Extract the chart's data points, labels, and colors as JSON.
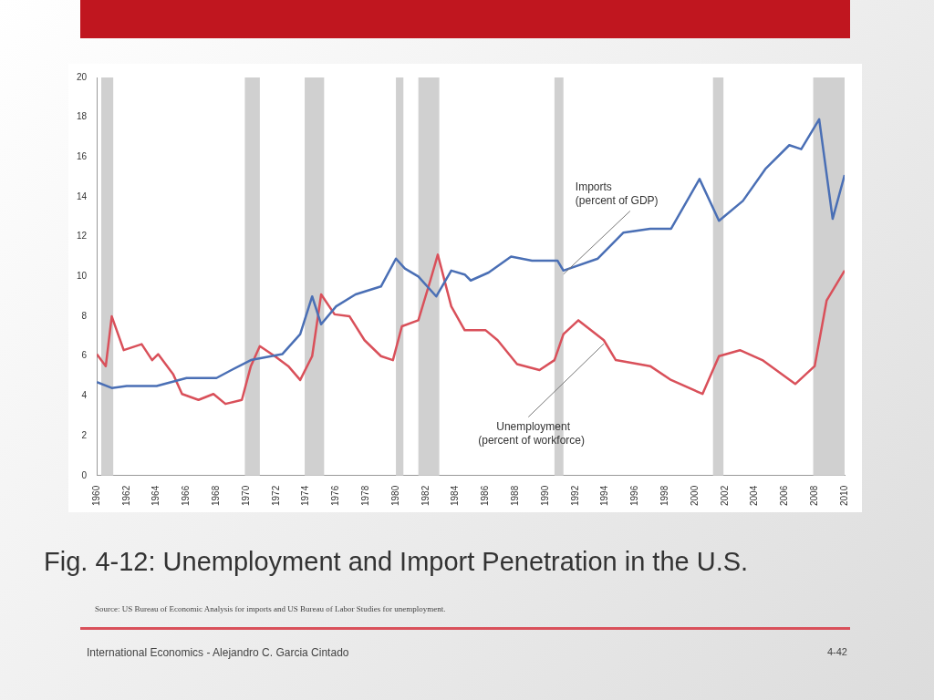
{
  "chart_data": {
    "type": "line",
    "title": "Fig. 4-12: Unemployment and Import Penetration in the U.S.",
    "annotations": [
      "Source: US Bureau of Economic Analysis for imports and US Bureau of Labor Studies for unemployment.",
      "International Economics - Alejandro C. Garcia Cintado",
      "4-42"
    ],
    "xlim": [
      1960,
      2010
    ],
    "xticks": [
      1960,
      1962,
      1964,
      1966,
      1968,
      1970,
      1972,
      1974,
      1976,
      1978,
      1980,
      1982,
      1984,
      1986,
      1988,
      1990,
      1992,
      1994,
      1996,
      1998,
      2000,
      2002,
      2004,
      2006,
      2008,
      2010
    ],
    "ylim": [
      0,
      20
    ],
    "yticks": [
      0,
      2,
      4,
      6,
      8,
      10,
      12,
      14,
      16,
      18,
      20
    ],
    "grid": false,
    "legend": false,
    "marker": "none",
    "line_style": "solid",
    "bands": [
      {
        "axis": "x",
        "from": 1960.3,
        "to": 1961.1,
        "color": "#d0d0d0"
      },
      {
        "axis": "x",
        "from": 1969.9,
        "to": 1970.9,
        "color": "#d0d0d0"
      },
      {
        "axis": "x",
        "from": 1973.9,
        "to": 1975.2,
        "color": "#d0d0d0"
      },
      {
        "axis": "x",
        "from": 1980.0,
        "to": 1980.5,
        "color": "#d0d0d0"
      },
      {
        "axis": "x",
        "from": 1981.5,
        "to": 1982.9,
        "color": "#d0d0d0"
      },
      {
        "axis": "x",
        "from": 1990.6,
        "to": 1991.2,
        "color": "#d0d0d0"
      },
      {
        "axis": "x",
        "from": 2001.2,
        "to": 2001.9,
        "color": "#d0d0d0"
      },
      {
        "axis": "x",
        "from": 2007.9,
        "to": 2010,
        "color": "#d0d0d0"
      }
    ],
    "series": [
      {
        "name": "Imports\n(percent of GDP)",
        "color": "#4a6fb5",
        "x": [
          1960,
          1961,
          1962,
          1964,
          1966,
          1968,
          1969,
          1970.3,
          1972.4,
          1973.6,
          1974.4,
          1975,
          1976,
          1977.3,
          1979,
          1980,
          1980.6,
          1981.5,
          1982.7,
          1983.7,
          1984.6,
          1985,
          1986.2,
          1987.7,
          1989.1,
          1990.8,
          1991.2,
          1993.5,
          1995.2,
          1997,
          1998.4,
          2000.3,
          2001.6,
          2003.2,
          2004.7,
          2006.3,
          2007.1,
          2008.3,
          2009.2,
          2010
        ],
        "values": [
          4.7,
          4.4,
          4.5,
          4.5,
          4.9,
          4.9,
          5.3,
          5.8,
          6.1,
          7.1,
          9.0,
          7.6,
          8.5,
          9.1,
          9.5,
          10.9,
          10.4,
          10.0,
          9.0,
          10.3,
          10.1,
          9.8,
          10.2,
          11.0,
          10.8,
          10.8,
          10.3,
          10.9,
          12.2,
          12.4,
          12.4,
          14.9,
          12.8,
          13.8,
          15.4,
          16.6,
          16.4,
          17.9,
          12.9,
          15.1
        ]
      },
      {
        "name": "Unemployment\n(percent of workforce)",
        "color": "#d9505a",
        "x": [
          1960,
          1960.6,
          1961,
          1961.8,
          1963,
          1963.7,
          1964.1,
          1965.1,
          1965.7,
          1966.8,
          1967.8,
          1968.6,
          1969.7,
          1970.3,
          1970.9,
          1971.9,
          1972.8,
          1973.6,
          1974.4,
          1975,
          1975.9,
          1976.9,
          1977.9,
          1979,
          1979.8,
          1980.4,
          1981.5,
          1982.3,
          1982.8,
          1983.7,
          1984.6,
          1986,
          1986.8,
          1988.1,
          1989.6,
          1990.6,
          1991.2,
          1992.2,
          1993.9,
          1994.7,
          1997,
          1998.4,
          2000.5,
          2001.6,
          2003,
          2004.5,
          2006.7,
          2008,
          2008.8,
          2010
        ],
        "values": [
          6.1,
          5.5,
          8.0,
          6.3,
          6.6,
          5.8,
          6.1,
          5.1,
          4.1,
          3.8,
          4.1,
          3.6,
          3.8,
          5.5,
          6.5,
          6.0,
          5.5,
          4.8,
          6.0,
          9.1,
          8.1,
          8.0,
          6.8,
          6.0,
          5.8,
          7.5,
          7.8,
          9.8,
          11.1,
          8.5,
          7.3,
          7.3,
          6.8,
          5.6,
          5.3,
          5.8,
          7.1,
          7.8,
          6.8,
          5.8,
          5.5,
          4.8,
          4.1,
          6.0,
          6.3,
          5.8,
          4.6,
          5.5,
          8.8,
          10.3
        ]
      }
    ]
  }
}
